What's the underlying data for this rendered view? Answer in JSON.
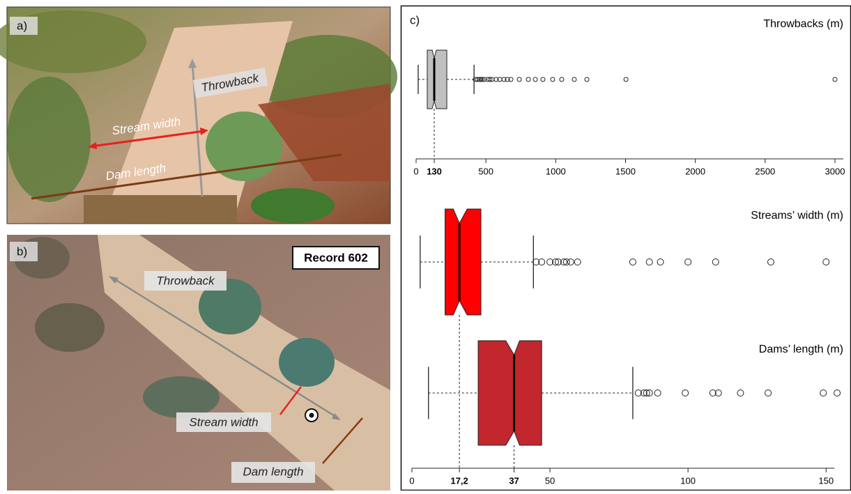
{
  "photo_a": {
    "label": "a)",
    "annotations": [
      "Throwback",
      "Stream width",
      "Dam length"
    ]
  },
  "photo_b": {
    "label": "b)",
    "record": "Record 602",
    "annotations": [
      "Throwback",
      "Stream width",
      "Dam length"
    ]
  },
  "panel_label": "c)",
  "chart_data": [
    {
      "type": "box",
      "title": "Throwbacks (m)",
      "color": "#c0c0c0",
      "whisker_low": 15,
      "q1": 80,
      "median": 130,
      "q3": 220,
      "whisker_high": 415,
      "notch": [
        115,
        145
      ],
      "outliers": [
        424,
        439,
        454,
        464,
        474,
        489,
        514,
        529,
        544,
        574,
        599,
        629,
        654,
        679,
        739,
        804,
        854,
        908,
        978,
        1043,
        1133,
        1223,
        1503,
        3000
      ],
      "xlim": [
        0,
        3000
      ],
      "xticks": [
        0,
        130,
        500,
        1000,
        1500,
        2000,
        2500,
        3000
      ]
    },
    {
      "type": "box",
      "title": "Streams’ width (m)",
      "color": "#ff0000",
      "whisker_low": 3,
      "q1": 12,
      "median": 17.2,
      "q3": 25,
      "whisker_high": 44,
      "notch": [
        15,
        20
      ],
      "outliers": [
        45,
        47,
        50,
        52,
        53,
        55,
        56,
        57.5,
        60,
        80,
        86,
        90,
        100,
        110,
        130,
        150
      ],
      "xlim": [
        0,
        156
      ]
    },
    {
      "type": "box",
      "title": "Dams’ length (m)",
      "color": "#c1272d",
      "whisker_low": 6,
      "q1": 24,
      "median": 37,
      "q3": 47,
      "whisker_high": 80,
      "notch": [
        34,
        39
      ],
      "outliers": [
        82,
        84,
        85,
        86,
        89,
        99,
        109,
        111,
        119,
        129,
        149,
        154
      ],
      "xlim": [
        0,
        156
      ],
      "xticks": [
        0,
        {
          "value": 17.2,
          "label": "17,2"
        },
        37,
        50,
        100,
        150
      ]
    }
  ]
}
